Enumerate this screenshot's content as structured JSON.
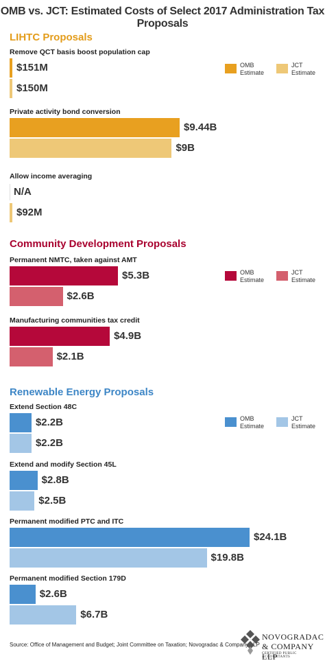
{
  "title": "OMB vs. JCT: Estimated Costs of Select 2017 Administration Tax Proposals",
  "chart_data": [
    {
      "type": "bar",
      "orientation": "horizontal",
      "title": "LIHTC Proposals",
      "title_color": "#e39c1a",
      "categories": [
        "Remove QCT basis boost population cap",
        "Private activity bond conversion",
        "Allow income averaging"
      ],
      "series": [
        {
          "name": "OMB Estimate",
          "color": "#e8a020",
          "values": [
            0.151,
            9.44,
            null
          ],
          "value_labels": [
            "$151M",
            "$9.44B",
            "N/A"
          ]
        },
        {
          "name": "JCT Estimate",
          "color": "#eec877",
          "values": [
            0.15,
            9,
            0.092
          ],
          "value_labels": [
            "$150M",
            "$9B",
            "$92M"
          ]
        }
      ]
    },
    {
      "type": "bar",
      "orientation": "horizontal",
      "title": "Community Development Proposals",
      "title_color": "#a8002e",
      "categories": [
        "Permanent NMTC, taken against AMT",
        "Manufacturing communities tax credit"
      ],
      "series": [
        {
          "name": "OMB Estimate",
          "color": "#b5083a",
          "values": [
            5.3,
            4.9
          ],
          "value_labels": [
            "$5.3B",
            "$4.9B"
          ]
        },
        {
          "name": "JCT Estimate",
          "color": "#d4606e",
          "values": [
            2.6,
            2.1
          ],
          "value_labels": [
            "$2.6B",
            "$2.1B"
          ]
        }
      ]
    },
    {
      "type": "bar",
      "orientation": "horizontal",
      "title": "Renewable Energy Proposals",
      "title_color": "#3d86c6",
      "categories": [
        "Extend Section 48C",
        "Extend and modify Section 45L",
        "Permanent modified PTC and ITC",
        "Permanent modified Section 179D"
      ],
      "series": [
        {
          "name": "OMB Estimate",
          "color": "#4a90cf",
          "values": [
            2.2,
            2.8,
            24.1,
            2.6
          ],
          "value_labels": [
            "$2.2B",
            "$2.8B",
            "$24.1B",
            "$2.6B"
          ]
        },
        {
          "name": "JCT Estimate",
          "color": "#a3c6e6",
          "values": [
            2.2,
            2.5,
            19.8,
            6.7
          ],
          "value_labels": [
            "$2.2B",
            "$2.5B",
            "$19.8B",
            "$6.7B"
          ]
        }
      ]
    }
  ],
  "source": "Source: Office of Management and Budget; Joint Committee on Taxation; Novogradac & Company LLP",
  "logo": {
    "name": "NOVOGRADAC",
    "company": "& COMPANY LLP",
    "tagline": "CERTIFIED PUBLIC ACCOUNTANTS"
  }
}
